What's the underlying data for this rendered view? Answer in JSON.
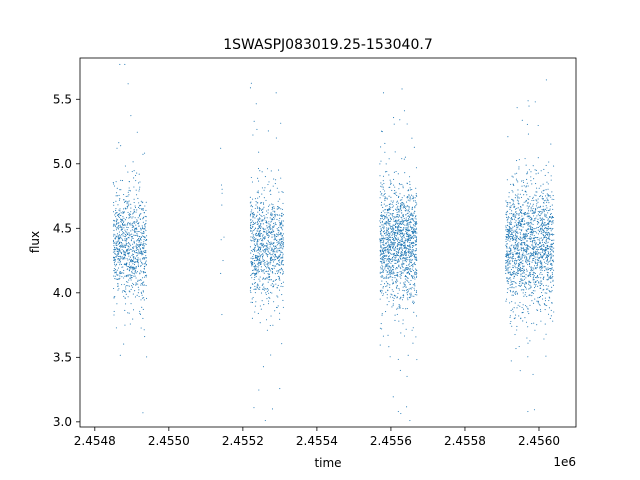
{
  "chart_data": {
    "type": "scatter",
    "title": "1SWASPJ083019.25-153040.7",
    "xlabel": "time",
    "ylabel": "flux",
    "x_offset_label": "1e6",
    "xlim": [
      2.45476,
      2.4561
    ],
    "ylim": [
      2.96,
      5.82
    ],
    "x_ticks": [
      2.4548,
      2.455,
      2.4552,
      2.4554,
      2.4556,
      2.4558,
      2.456
    ],
    "x_tick_labels": [
      "2.4548",
      "2.4550",
      "2.4552",
      "2.4554",
      "2.4556",
      "2.4558",
      "2.4560"
    ],
    "y_ticks": [
      3.0,
      3.5,
      4.0,
      4.5,
      5.0,
      5.5
    ],
    "y_tick_labels": [
      "3.0",
      "3.5",
      "4.0",
      "4.5",
      "5.0",
      "5.5"
    ],
    "grid": false,
    "marker_color": "#1f77b4",
    "series": [
      {
        "clusters": [
          {
            "x_range": [
              2.45485,
              2.45494
            ],
            "center": 4.38,
            "spread": 0.2,
            "count": 900
          },
          {
            "x_range": [
              2.45514,
              2.45515
            ],
            "center": 4.4,
            "spread": 0.35,
            "count": 8
          },
          {
            "x_range": [
              2.45522,
              2.45531
            ],
            "center": 4.36,
            "spread": 0.22,
            "count": 900
          },
          {
            "x_range": [
              2.45557,
              2.45567
            ],
            "center": 4.38,
            "spread": 0.23,
            "count": 1400
          },
          {
            "x_range": [
              2.45591,
              2.45604
            ],
            "center": 4.38,
            "spread": 0.24,
            "count": 1600
          }
        ],
        "points": [
          {
            "x": 2.45489,
            "y": 5.62
          },
          {
            "x": 2.45493,
            "y": 3.07
          },
          {
            "x": 2.45486,
            "y": 5.12
          },
          {
            "x": 2.45528,
            "y": 3.1
          },
          {
            "x": 2.45523,
            "y": 3.11
          },
          {
            "x": 2.45529,
            "y": 5.55
          },
          {
            "x": 2.45562,
            "y": 3.08
          },
          {
            "x": 2.45558,
            "y": 5.55
          },
          {
            "x": 2.45563,
            "y": 5.58
          },
          {
            "x": 2.45597,
            "y": 3.08
          },
          {
            "x": 2.45602,
            "y": 5.65
          },
          {
            "x": 2.45599,
            "y": 5.48
          },
          {
            "x": 2.45514,
            "y": 5.12
          },
          {
            "x": 2.45514,
            "y": 4.15
          }
        ]
      }
    ]
  }
}
